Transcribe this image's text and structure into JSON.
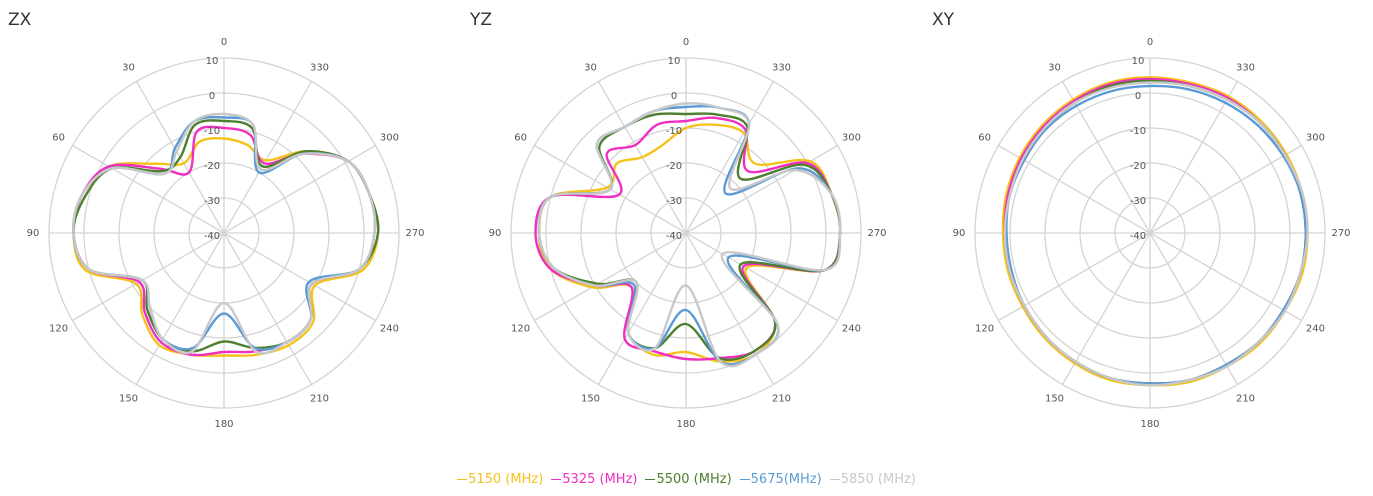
{
  "chart_data": [
    {
      "type": "polar",
      "title": "ZX",
      "theta": [
        0,
        15,
        30,
        45,
        60,
        75,
        90,
        105,
        120,
        135,
        150,
        165,
        180,
        195,
        210,
        225,
        240,
        255,
        270,
        285,
        300,
        315,
        330,
        345
      ],
      "thetaticks": [
        0,
        30,
        60,
        90,
        120,
        150,
        180,
        210,
        240,
        270,
        300,
        330
      ],
      "rlim": [
        -40,
        10
      ],
      "rticks": [
        10,
        0,
        -10,
        -20,
        -30,
        -40
      ],
      "series": [
        {
          "values": [
            -13,
            -13,
            -17,
            -12,
            -2,
            2,
            3,
            1,
            -11,
            -7,
            -3,
            -4,
            -5,
            -4,
            -3,
            -4,
            -10,
            1,
            4,
            3,
            1,
            -7,
            -16,
            -14
          ]
        },
        {
          "values": [
            -10,
            -10,
            -20,
            -14,
            -2,
            2,
            3,
            0,
            -12,
            -8,
            -4,
            -4,
            -6,
            -5,
            -4,
            -5,
            -11,
            0,
            3,
            3,
            1,
            -8,
            -17,
            -11
          ]
        },
        {
          "values": [
            -8,
            -8,
            -15,
            -15,
            -3,
            1,
            3,
            0,
            -13,
            -9,
            -5,
            -5,
            -9,
            -6,
            -4,
            -5,
            -11,
            0,
            4,
            3,
            1,
            -7,
            -18,
            -9
          ]
        },
        {
          "values": [
            -7,
            -7,
            -12,
            -16,
            -3,
            2,
            3,
            0,
            -13,
            -10,
            -5,
            -6,
            -17,
            -6,
            -4,
            -5,
            -12,
            0,
            3,
            3,
            1,
            -8,
            -20,
            -8
          ]
        },
        {
          "values": [
            -6,
            -7,
            -13,
            -16,
            -3,
            2,
            3,
            0,
            -13,
            -10,
            -5,
            -5,
            -20,
            -5,
            -4,
            -5,
            -11,
            0,
            3,
            3,
            1,
            -8,
            -19,
            -8
          ]
        }
      ]
    },
    {
      "type": "polar",
      "title": "YZ",
      "theta": [
        0,
        15,
        30,
        45,
        60,
        75,
        90,
        105,
        120,
        135,
        150,
        165,
        180,
        195,
        210,
        225,
        240,
        255,
        270,
        285,
        300,
        315,
        330,
        345
      ],
      "thetaticks": [
        0,
        30,
        60,
        90,
        120,
        150,
        180,
        210,
        240,
        270,
        300,
        330
      ],
      "rlim": [
        -40,
        10
      ],
      "rticks": [
        10,
        0,
        -10,
        -20,
        -30,
        -40
      ],
      "series": [
        {
          "values": [
            -10,
            -14,
            -15,
            -12,
            -14,
            0,
            2,
            0,
            -9,
            -18,
            -7,
            -4,
            -6,
            -2,
            0,
            -4,
            -20,
            1,
            4,
            3,
            1,
            -12,
            -7,
            -8
          ]
        },
        {
          "values": [
            -8,
            -8,
            -11,
            -8,
            -18,
            0,
            3,
            0,
            -10,
            -18,
            -5,
            -5,
            -4,
            -3,
            -1,
            -4,
            -21,
            1,
            4,
            3,
            0,
            -15,
            -6,
            -6
          ]
        },
        {
          "values": [
            -6,
            -5,
            -5,
            -5,
            -15,
            0,
            2,
            -1,
            -11,
            -20,
            -7,
            -6,
            -14,
            -3,
            -1,
            -4,
            -22,
            1,
            4,
            3,
            -1,
            -18,
            -5,
            -5
          ]
        },
        {
          "values": [
            -4,
            -4,
            -5,
            -4,
            -15,
            0,
            2,
            -1,
            -10,
            -19,
            -7,
            -6,
            -18,
            -2,
            0,
            -3,
            -26,
            1,
            4,
            3,
            -3,
            -24,
            -4,
            -3
          ]
        },
        {
          "values": [
            -3,
            -4,
            -5,
            -4,
            -15,
            0,
            2,
            -1,
            -10,
            -20,
            -7,
            -6,
            -25,
            -2,
            0,
            -3,
            -28,
            1,
            4,
            3,
            -4,
            -22,
            -4,
            -3
          ]
        }
      ]
    },
    {
      "type": "polar",
      "title": "XY",
      "theta": [
        0,
        15,
        30,
        45,
        60,
        75,
        90,
        105,
        120,
        135,
        150,
        165,
        180,
        195,
        210,
        225,
        240,
        255,
        270,
        285,
        300,
        315,
        330,
        345
      ],
      "thetaticks": [
        0,
        30,
        60,
        90,
        120,
        150,
        180,
        210,
        240,
        270,
        300,
        330
      ],
      "rlim": [
        -40,
        10
      ],
      "rticks": [
        10,
        0,
        -10,
        -20,
        -30,
        -40
      ],
      "series": [
        {
          "values": [
            4.5,
            4.5,
            4,
            3.5,
            3,
            2.5,
            2,
            2,
            2,
            2.5,
            3,
            3.5,
            3.5,
            4,
            4,
            4.5,
            4.5,
            5,
            5,
            5,
            5,
            5,
            5,
            4.5
          ]
        },
        {
          "values": [
            4,
            4,
            3.5,
            3,
            2.5,
            2,
            1.5,
            1.5,
            1.5,
            2,
            2.5,
            3,
            3,
            3.5,
            3.5,
            4,
            4,
            4.5,
            4.5,
            4.5,
            4.5,
            4.5,
            4.5,
            4
          ]
        },
        {
          "values": [
            3.5,
            3.5,
            3,
            2.5,
            2,
            1.5,
            1.5,
            1.5,
            1.5,
            2,
            2.5,
            3,
            3,
            3.5,
            3.5,
            4,
            4,
            4.5,
            4.5,
            4.5,
            4.5,
            4.5,
            4,
            3.5
          ]
        },
        {
          "values": [
            2,
            2,
            2,
            2,
            1.5,
            1.5,
            1,
            1,
            1.5,
            2,
            2.5,
            3,
            3,
            3.5,
            3.5,
            4,
            4,
            4.5,
            4.5,
            4.5,
            4,
            3.5,
            3,
            2.5
          ]
        },
        {
          "values": [
            3,
            3,
            3,
            2.5,
            2,
            1.5,
            1.5,
            1.5,
            1.5,
            2,
            2.5,
            3,
            3.5,
            3.5,
            4,
            4,
            4.5,
            4.5,
            5,
            5,
            4.5,
            4.5,
            4,
            3.5
          ]
        }
      ]
    }
  ],
  "legend": [
    {
      "name": "5150 (MHz)",
      "color": "#f5c21b"
    },
    {
      "name": "5325 (MHz)",
      "color": "#f02fc2"
    },
    {
      "name": "5500 (MHz)",
      "color": "#4e7f2f"
    },
    {
      "name": "5675(MHz)",
      "color": "#5b9bd5"
    },
    {
      "name": "5850 (MHz)",
      "color": "#c8c8c8"
    }
  ]
}
